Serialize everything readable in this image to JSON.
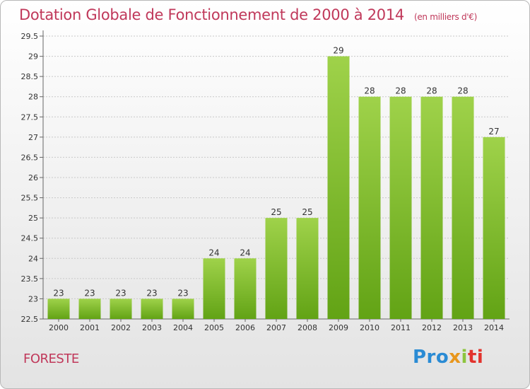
{
  "title": "Dotation Globale de Fonctionnement de 2000 à 2014",
  "unit": "(en milliers d'€)",
  "town": "FORESTE",
  "logo": {
    "parts": [
      "Pro",
      "x",
      "i",
      "ti"
    ]
  },
  "colors": {
    "title": "#c0385a",
    "bar_light": "#9fd24a",
    "bar_dark": "#62a315",
    "grid": "#c8c8c8"
  },
  "chart_data": {
    "type": "bar",
    "categories": [
      "2000",
      "2001",
      "2002",
      "2003",
      "2004",
      "2005",
      "2006",
      "2007",
      "2008",
      "2009",
      "2010",
      "2011",
      "2012",
      "2013",
      "2014"
    ],
    "values": [
      23,
      23,
      23,
      23,
      23,
      24,
      24,
      25,
      25,
      29,
      28,
      28,
      28,
      28,
      27
    ],
    "value_labels": [
      "23",
      "23",
      "23",
      "23",
      "23",
      "24",
      "24",
      "25",
      "25",
      "29",
      "28",
      "28",
      "28",
      "28",
      "27"
    ],
    "ylim": [
      22.5,
      29.5
    ],
    "yticks": [
      "22.5",
      "23",
      "23.5",
      "24",
      "24.5",
      "25",
      "25.5",
      "26",
      "26.5",
      "27",
      "27.5",
      "28",
      "28.5",
      "29",
      "29.5"
    ],
    "grid": true
  }
}
